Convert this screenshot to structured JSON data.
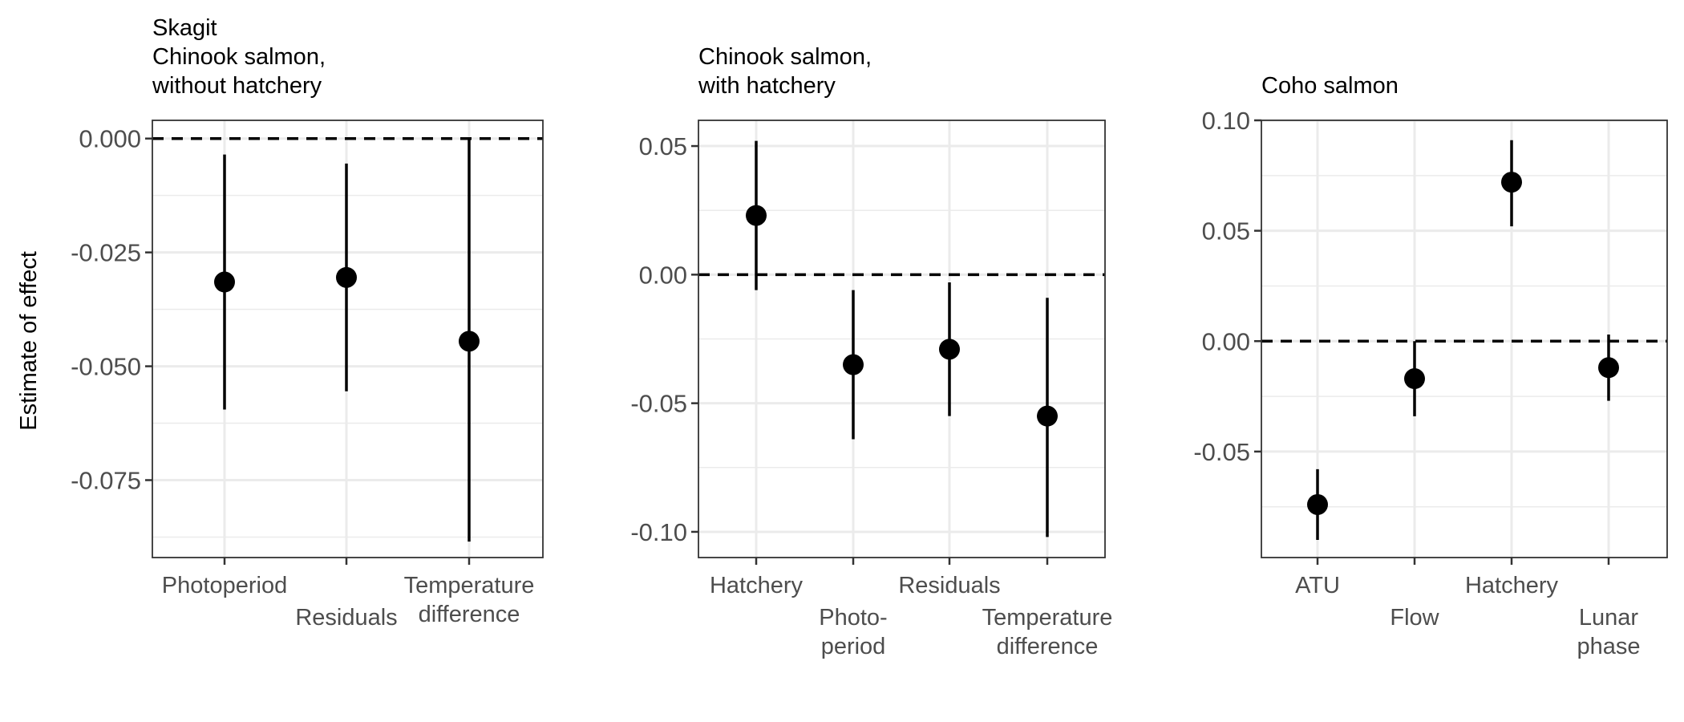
{
  "figure": {
    "y_axis_title": "Estimate of effect"
  },
  "chart_data": [
    {
      "type": "scatter",
      "subtype": "point-range",
      "title_lines": [
        "Skagit",
        "Chinook salmon,",
        "without hatchery"
      ],
      "ylabel": "Estimate of effect",
      "ylim": [
        -0.092,
        0.004
      ],
      "yticks": [
        0.0,
        -0.025,
        -0.05,
        -0.075
      ],
      "ytick_labels": [
        "0.000",
        "-0.025",
        "-0.050",
        "-0.075"
      ],
      "reference_line": 0.0,
      "grid": true,
      "categories": [
        "Photoperiod",
        "Residuals",
        "Temperature difference"
      ],
      "x_label_lines": [
        [
          "Photoperiod"
        ],
        [
          "Residuals"
        ],
        [
          "Temperature",
          "difference"
        ]
      ],
      "x_label_rows": [
        0,
        1,
        0
      ],
      "points": [
        {
          "category": "Photoperiod",
          "estimate": -0.0315,
          "lower": -0.0595,
          "upper": -0.0035
        },
        {
          "category": "Residuals",
          "estimate": -0.0305,
          "lower": -0.0555,
          "upper": -0.0055
        },
        {
          "category": "Temperature difference",
          "estimate": -0.0445,
          "lower": -0.0885,
          "upper": 0.0
        }
      ]
    },
    {
      "type": "scatter",
      "subtype": "point-range",
      "title_lines": [
        "Chinook salmon,",
        "with hatchery"
      ],
      "ylabel": "",
      "ylim": [
        -0.11,
        0.06
      ],
      "yticks": [
        0.05,
        0.0,
        -0.05,
        -0.1
      ],
      "ytick_labels": [
        "0.05",
        "0.00",
        "-0.05",
        "-0.10"
      ],
      "reference_line": 0.0,
      "grid": true,
      "categories": [
        "Hatchery",
        "Photoperiod",
        "Residuals",
        "Temperature difference"
      ],
      "x_label_lines": [
        [
          "Hatchery"
        ],
        [
          "Photo-",
          "period"
        ],
        [
          "Residuals"
        ],
        [
          "Temperature",
          "difference"
        ]
      ],
      "x_label_rows": [
        0,
        1,
        0,
        1
      ],
      "points": [
        {
          "category": "Hatchery",
          "estimate": 0.023,
          "lower": -0.006,
          "upper": 0.052
        },
        {
          "category": "Photoperiod",
          "estimate": -0.035,
          "lower": -0.064,
          "upper": -0.006
        },
        {
          "category": "Residuals",
          "estimate": -0.029,
          "lower": -0.055,
          "upper": -0.003
        },
        {
          "category": "Temperature difference",
          "estimate": -0.055,
          "lower": -0.102,
          "upper": -0.009
        }
      ]
    },
    {
      "type": "scatter",
      "subtype": "point-range",
      "title_lines": [
        "Coho salmon"
      ],
      "ylabel": "",
      "ylim": [
        -0.098,
        0.1
      ],
      "yticks": [
        0.1,
        0.05,
        0.0,
        -0.05
      ],
      "ytick_labels": [
        "0.10",
        "0.05",
        "0.00",
        "-0.05"
      ],
      "reference_line": 0.0,
      "grid": true,
      "categories": [
        "ATU",
        "Flow",
        "Hatchery",
        "Lunar phase"
      ],
      "x_label_lines": [
        [
          "ATU"
        ],
        [
          "Flow"
        ],
        [
          "Hatchery"
        ],
        [
          "Lunar",
          "phase"
        ]
      ],
      "x_label_rows": [
        0,
        1,
        0,
        1
      ],
      "points": [
        {
          "category": "ATU",
          "estimate": -0.074,
          "lower": -0.09,
          "upper": -0.058
        },
        {
          "category": "Flow",
          "estimate": -0.017,
          "lower": -0.034,
          "upper": 0.0
        },
        {
          "category": "Hatchery",
          "estimate": 0.072,
          "lower": 0.052,
          "upper": 0.091
        },
        {
          "category": "Lunar phase",
          "estimate": -0.012,
          "lower": -0.027,
          "upper": 0.003
        }
      ]
    }
  ]
}
